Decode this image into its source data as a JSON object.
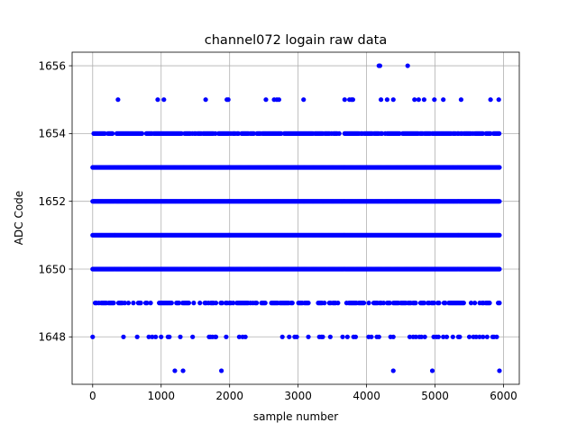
{
  "chart_data": {
    "type": "scatter",
    "title": "channel072 logain raw data",
    "xlabel": "sample number",
    "ylabel": "ADC Code",
    "xlim": [
      -300,
      6230
    ],
    "ylim": [
      1646.6,
      1656.4
    ],
    "xticks": [
      0,
      1000,
      2000,
      3000,
      4000,
      5000,
      6000
    ],
    "yticks": [
      1648,
      1650,
      1652,
      1654,
      1656
    ],
    "grid": true,
    "marker_color": "#0000ff",
    "n_samples": 5940,
    "series": [
      {
        "dense_levels": [
          1650,
          1651,
          1652,
          1653
        ],
        "medium_level_1654_gaps": [
          205,
          310,
          760,
          1320,
          1600,
          2150,
          2780,
          3470,
          3950,
          4500,
          4830,
          5250,
          5720
        ],
        "medium_level_1649_gaps": [
          340,
          560,
          870,
          1190,
          1520,
          1840,
          2430,
          2960,
          3260,
          3630,
          4010,
          4280,
          4760,
          5180,
          5460,
          5870
        ],
        "points_1656": [
          4180,
          4195,
          4600
        ],
        "points_1655": [
          370,
          950,
          1040,
          1650,
          1960,
          1980,
          2530,
          2650,
          2690,
          2720,
          3080,
          3680,
          3750,
          3780,
          3800,
          4210,
          4300,
          4390,
          4700,
          4760,
          4840,
          4990,
          5120,
          5380,
          5810,
          5930
        ],
        "points_1648": [
          0,
          450,
          650,
          820,
          870,
          920,
          1000,
          1100,
          1120,
          1280,
          1460,
          1700,
          1720,
          1750,
          1790,
          1800,
          1950,
          2140,
          2190,
          2230,
          2770,
          2870,
          2950,
          2980,
          3150,
          3310,
          3340,
          3360,
          3470,
          3650,
          3720,
          3810,
          3840,
          4030,
          4070,
          4150,
          4180,
          4350,
          4390,
          4630,
          4680,
          4720,
          4770,
          4800,
          4850,
          4980,
          5020,
          5050,
          5120,
          5170,
          5260,
          5340,
          5360,
          5500,
          5560,
          5600,
          5650,
          5700,
          5760,
          5840,
          5860,
          5900
        ],
        "points_1647": [
          1200,
          1320,
          1880,
          4390,
          4960,
          5940
        ]
      }
    ]
  }
}
